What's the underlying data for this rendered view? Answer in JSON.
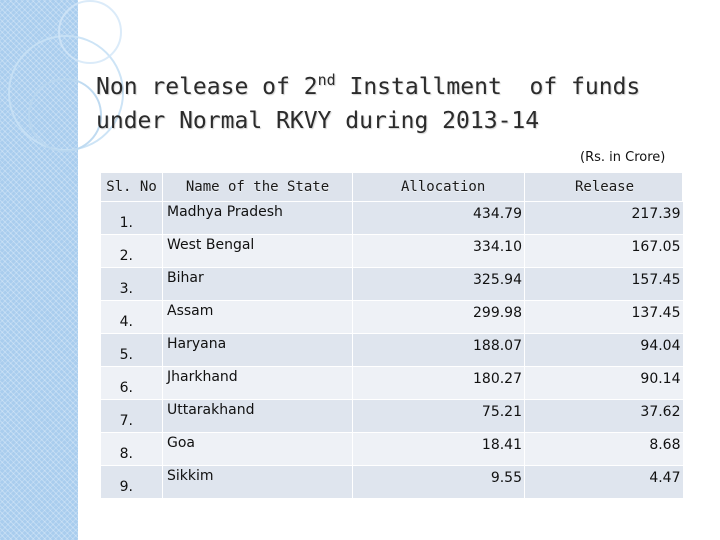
{
  "slide": {
    "title_line1_prefix": "Non release of 2",
    "title_superscript": "nd",
    "title_line1_suffix": " Installment  of funds",
    "title_line2": "under Normal RKVY during 2013-14",
    "units_note": "(Rs. in Crore)"
  },
  "table": {
    "headers": {
      "sl_no": "Sl. No",
      "state": "Name of the State",
      "allocation": "Allocation",
      "release": "Release"
    },
    "rows": [
      {
        "sl": "1.",
        "state": "Madhya Pradesh",
        "allocation": "434.79",
        "release": "217.39"
      },
      {
        "sl": "2.",
        "state": "West Bengal",
        "allocation": "334.10",
        "release": "167.05"
      },
      {
        "sl": "3.",
        "state": "Bihar",
        "allocation": "325.94",
        "release": "157.45"
      },
      {
        "sl": "4.",
        "state": "Assam",
        "allocation": "299.98",
        "release": "137.45"
      },
      {
        "sl": "5.",
        "state": "Haryana",
        "allocation": "188.07",
        "release": "94.04"
      },
      {
        "sl": "6.",
        "state": "Jharkhand",
        "allocation": "180.27",
        "release": "90.14"
      },
      {
        "sl": "7.",
        "state": "Uttarakhand",
        "allocation": "75.21",
        "release": "37.62"
      },
      {
        "sl": "8.",
        "state": "Goa",
        "allocation": "18.41",
        "release": "8.68"
      },
      {
        "sl": "9.",
        "state": "Sikkim",
        "allocation": "9.55",
        "release": "4.47"
      }
    ]
  },
  "colors": {
    "side_panel": "#a9cdee",
    "header_bg": "#dde3ec",
    "row_dark": "#dfe5ee",
    "row_light": "#eef1f6"
  }
}
